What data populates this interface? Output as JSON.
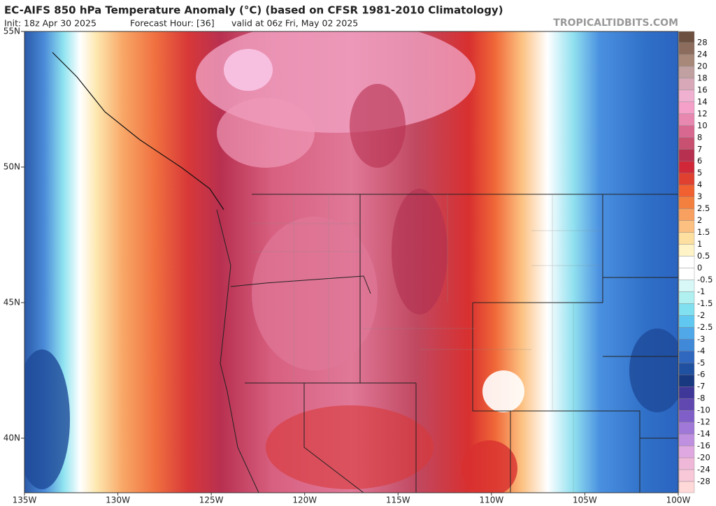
{
  "header": {
    "title": "EC-AIFS 850 hPa Temperature Anomaly (°C) (based on CFSR 1981-2010 Climatology)",
    "init": "Init: 18z Apr 30 2025",
    "forecast_hour": "Forecast Hour: [36]",
    "valid": "valid at 06z Fri, May 02 2025",
    "watermark": "TROPICALTIDBITS.COM"
  },
  "map": {
    "lat_labels": [
      "55N",
      "50N",
      "45N",
      "40N"
    ],
    "lon_labels": [
      "135W",
      "130W",
      "125W",
      "120W",
      "115W",
      "110W",
      "105W",
      "100W"
    ]
  },
  "colorbar": {
    "levels": [
      28,
      24,
      20,
      18,
      16,
      14,
      12,
      10,
      8,
      7,
      6,
      5,
      4,
      3,
      2.5,
      2,
      1.5,
      1,
      0.5,
      0,
      -0.5,
      -1,
      -1.5,
      -2,
      -2.5,
      -3,
      -4,
      -5,
      -6,
      -7,
      -8,
      -10,
      -12,
      -14,
      -16,
      -20,
      -24,
      -28
    ],
    "colors": [
      "#6e5040",
      "#8c6c5c",
      "#a88878",
      "#c0a0a0",
      "#d8a8b8",
      "#f0b0d0",
      "#f4a0c8",
      "#e888b0",
      "#d86890",
      "#c85070",
      "#b83050",
      "#d02838",
      "#e04030",
      "#f06030",
      "#f48040",
      "#f8a060",
      "#fcc080",
      "#fde0a0",
      "#fff4c8",
      "#ffffff",
      "#ffffff",
      "#d8f8f8",
      "#b0f0f0",
      "#80e0f0",
      "#60c8f0",
      "#50a8e8",
      "#4088d8",
      "#3068c0",
      "#2050a0",
      "#183880",
      "#403898",
      "#6048b0",
      "#8060c8",
      "#a078d8",
      "#c090e0",
      "#e0a8e0",
      "#f0b8d8",
      "#f8c8d8",
      "#ffd8d8"
    ]
  }
}
